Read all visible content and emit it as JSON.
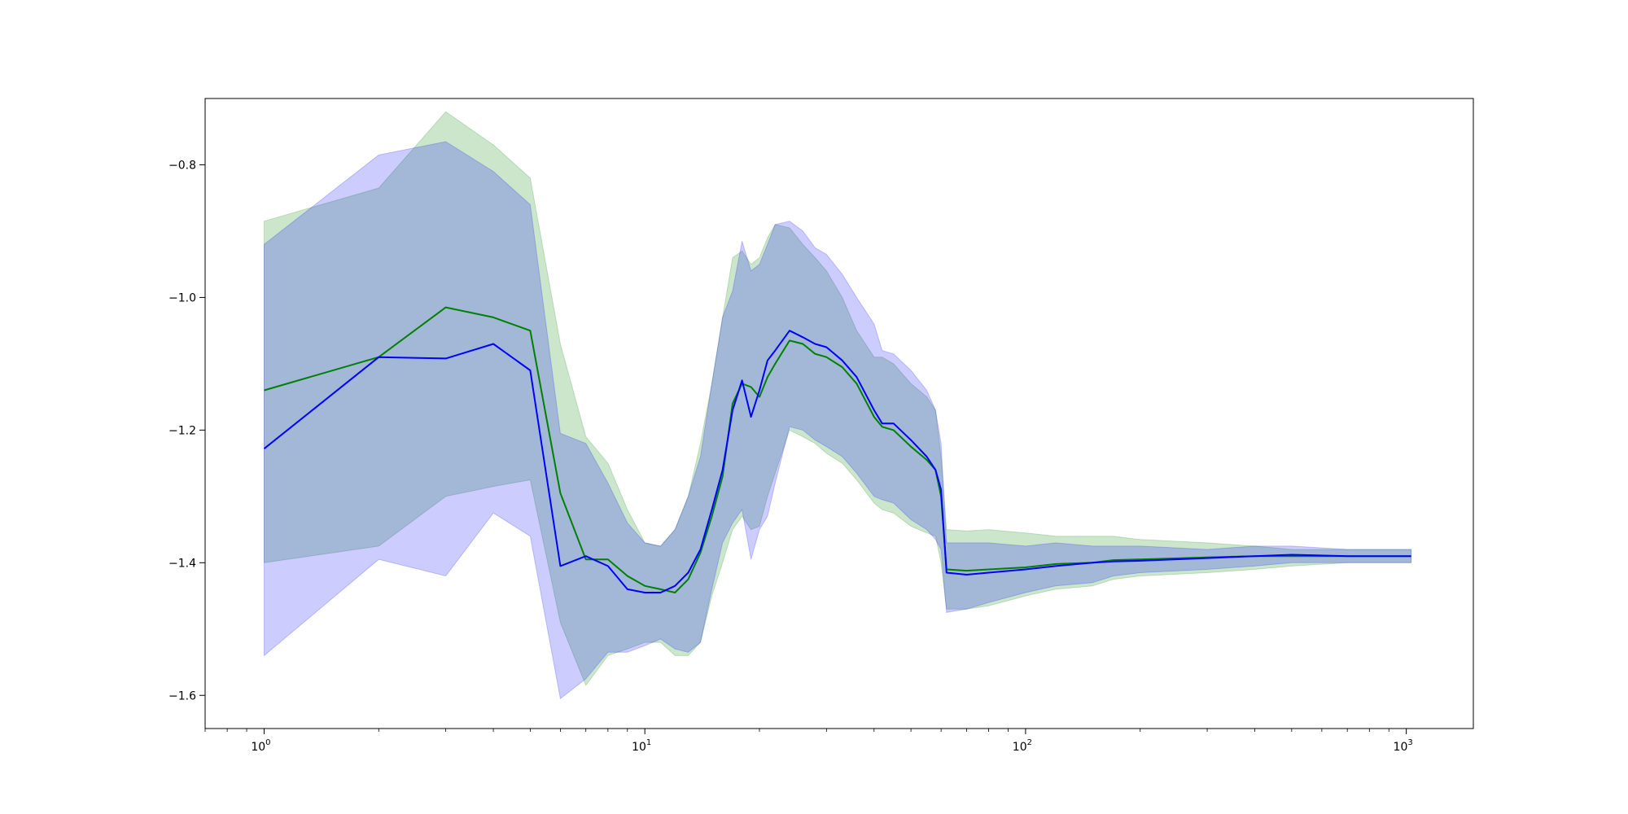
{
  "chart_data": {
    "type": "area",
    "title": "",
    "xlabel": "",
    "ylabel": "",
    "x_scale": "log",
    "xlim": [
      0.7,
      1500
    ],
    "ylim": [
      -1.65,
      -0.7
    ],
    "grid": false,
    "x_ticks": [
      {
        "value": 1,
        "base": "10",
        "exp": "0"
      },
      {
        "value": 10,
        "base": "10",
        "exp": "1"
      },
      {
        "value": 100,
        "base": "10",
        "exp": "2"
      },
      {
        "value": 1000,
        "base": "10",
        "exp": "3"
      }
    ],
    "y_ticks": [
      {
        "value": -0.8,
        "label": "−0.8"
      },
      {
        "value": -1.0,
        "label": "−1.0"
      },
      {
        "value": -1.2,
        "label": "−1.2"
      },
      {
        "value": -1.4,
        "label": "−1.4"
      },
      {
        "value": -1.6,
        "label": "−1.6"
      }
    ],
    "series": [
      {
        "color": "#008000",
        "band_color": "#008000",
        "x": [
          1,
          2,
          3,
          4,
          5,
          6,
          7,
          8,
          9,
          10,
          11,
          12,
          13,
          14,
          15,
          16,
          17,
          18,
          19,
          20,
          21,
          22,
          24,
          26,
          28,
          30,
          33,
          36,
          40,
          42,
          45,
          50,
          55,
          58,
          60,
          62,
          70,
          80,
          100,
          120,
          150,
          170,
          200,
          300,
          400,
          500,
          700,
          1000,
          1030
        ],
        "mean": [
          -1.14,
          -1.09,
          -1.015,
          -1.03,
          -1.05,
          -1.295,
          -1.395,
          -1.395,
          -1.42,
          -1.435,
          -1.44,
          -1.445,
          -1.425,
          -1.385,
          -1.33,
          -1.27,
          -1.16,
          -1.13,
          -1.135,
          -1.15,
          -1.12,
          -1.1,
          -1.065,
          -1.07,
          -1.085,
          -1.09,
          -1.105,
          -1.13,
          -1.18,
          -1.195,
          -1.2,
          -1.225,
          -1.245,
          -1.26,
          -1.3,
          -1.41,
          -1.412,
          -1.41,
          -1.407,
          -1.402,
          -1.4,
          -1.396,
          -1.395,
          -1.392,
          -1.39,
          -1.39,
          -1.39,
          -1.39,
          -1.39
        ],
        "upper": [
          -0.885,
          -0.835,
          -0.72,
          -0.77,
          -0.82,
          -1.07,
          -1.21,
          -1.25,
          -1.32,
          -1.37,
          -1.375,
          -1.35,
          -1.3,
          -1.22,
          -1.13,
          -1.03,
          -0.94,
          -0.93,
          -0.95,
          -0.94,
          -0.91,
          -0.89,
          -0.895,
          -0.92,
          -0.94,
          -0.96,
          -1.0,
          -1.05,
          -1.09,
          -1.09,
          -1.1,
          -1.13,
          -1.15,
          -1.17,
          -1.24,
          -1.35,
          -1.352,
          -1.35,
          -1.355,
          -1.36,
          -1.36,
          -1.36,
          -1.365,
          -1.37,
          -1.375,
          -1.38,
          -1.38,
          -1.38,
          -1.38
        ],
        "lower": [
          -1.4,
          -1.375,
          -1.3,
          -1.285,
          -1.275,
          -1.49,
          -1.585,
          -1.54,
          -1.53,
          -1.52,
          -1.52,
          -1.54,
          -1.54,
          -1.52,
          -1.45,
          -1.4,
          -1.35,
          -1.33,
          -1.35,
          -1.345,
          -1.3,
          -1.265,
          -1.2,
          -1.21,
          -1.22,
          -1.235,
          -1.25,
          -1.275,
          -1.31,
          -1.32,
          -1.325,
          -1.345,
          -1.355,
          -1.36,
          -1.4,
          -1.47,
          -1.47,
          -1.465,
          -1.45,
          -1.44,
          -1.435,
          -1.425,
          -1.42,
          -1.415,
          -1.41,
          -1.405,
          -1.4,
          -1.4,
          -1.4
        ]
      },
      {
        "color": "#0000ff",
        "band_color": "#0000ff",
        "x": [
          1,
          2,
          3,
          4,
          5,
          6,
          7,
          8,
          9,
          10,
          11,
          12,
          13,
          14,
          15,
          16,
          17,
          18,
          19,
          20,
          21,
          22,
          24,
          26,
          28,
          30,
          33,
          36,
          40,
          42,
          45,
          50,
          55,
          58,
          60,
          62,
          70,
          80,
          100,
          120,
          150,
          170,
          200,
          300,
          400,
          500,
          700,
          1000,
          1030
        ],
        "mean": [
          -1.228,
          -1.09,
          -1.092,
          -1.07,
          -1.11,
          -1.405,
          -1.39,
          -1.405,
          -1.44,
          -1.445,
          -1.445,
          -1.435,
          -1.415,
          -1.38,
          -1.32,
          -1.26,
          -1.17,
          -1.125,
          -1.18,
          -1.14,
          -1.095,
          -1.08,
          -1.05,
          -1.06,
          -1.07,
          -1.075,
          -1.095,
          -1.12,
          -1.17,
          -1.19,
          -1.19,
          -1.215,
          -1.24,
          -1.26,
          -1.29,
          -1.415,
          -1.418,
          -1.415,
          -1.41,
          -1.405,
          -1.4,
          -1.398,
          -1.397,
          -1.393,
          -1.39,
          -1.388,
          -1.39,
          -1.39,
          -1.39
        ],
        "upper": [
          -0.92,
          -0.785,
          -0.765,
          -0.81,
          -0.86,
          -1.205,
          -1.22,
          -1.28,
          -1.34,
          -1.37,
          -1.375,
          -1.35,
          -1.3,
          -1.24,
          -1.13,
          -1.03,
          -0.99,
          -0.915,
          -0.96,
          -0.95,
          -0.92,
          -0.89,
          -0.885,
          -0.9,
          -0.925,
          -0.935,
          -0.965,
          -1.0,
          -1.04,
          -1.08,
          -1.085,
          -1.11,
          -1.14,
          -1.17,
          -1.22,
          -1.37,
          -1.37,
          -1.37,
          -1.375,
          -1.37,
          -1.375,
          -1.375,
          -1.375,
          -1.38,
          -1.375,
          -1.375,
          -1.38,
          -1.38,
          -1.38
        ],
        "lower": [
          -1.54,
          -1.395,
          -1.42,
          -1.325,
          -1.36,
          -1.605,
          -1.575,
          -1.535,
          -1.535,
          -1.525,
          -1.515,
          -1.53,
          -1.535,
          -1.52,
          -1.44,
          -1.37,
          -1.34,
          -1.32,
          -1.395,
          -1.35,
          -1.33,
          -1.28,
          -1.195,
          -1.2,
          -1.215,
          -1.225,
          -1.24,
          -1.265,
          -1.3,
          -1.305,
          -1.31,
          -1.335,
          -1.35,
          -1.365,
          -1.38,
          -1.475,
          -1.47,
          -1.46,
          -1.445,
          -1.435,
          -1.43,
          -1.42,
          -1.415,
          -1.41,
          -1.405,
          -1.4,
          -1.4,
          -1.4,
          -1.4
        ]
      }
    ]
  }
}
